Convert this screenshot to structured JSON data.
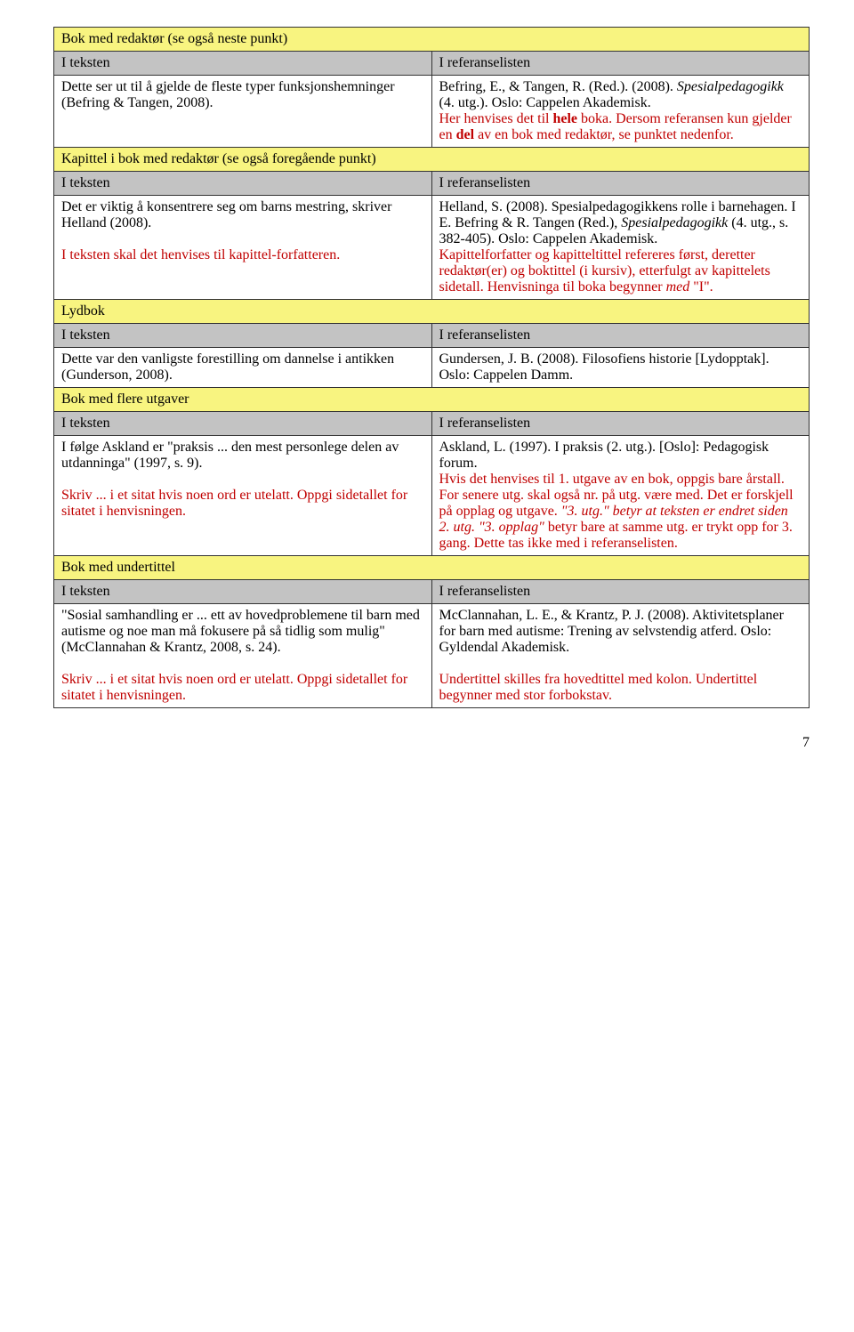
{
  "colors": {
    "yellow": "#f8f480",
    "grey": "#c3c3c3",
    "red": "#c00000"
  },
  "labels": {
    "i_teksten": "I teksten",
    "i_ref": "I referanselisten"
  },
  "section1": {
    "title": "Bok med redaktør (se også neste punkt)",
    "left": "Dette ser ut til å gjelde de fleste typer funksjonshemninger (Befring & Tangen, 2008).",
    "right": {
      "line1": "Befring, E., & Tangen, R. (Red.). (2008). ",
      "line1_i": "Spesialpedagogikk",
      "line1_end": " (4. utg.). Oslo: Cappelen Akademisk.",
      "note_a": "Her henvises det til ",
      "note_b": "hele",
      "note_c": " boka. Dersom referansen kun gjelder en ",
      "note_d": "del",
      "note_e": " av en bok med redaktør, se punktet nedenfor."
    }
  },
  "section2": {
    "title": "Kapittel i bok med redaktør (se også foregående punkt)",
    "left_a": "Det er viktig å konsentrere seg om barns mestring, skriver Helland (2008).",
    "left_b": "I teksten skal det henvises til kapittel-forfatteren.",
    "right": {
      "r1": "Helland, S. (2008). Spesialpedagogikkens rolle i barnehagen. I E. Befring & R. Tangen (Red.), ",
      "r1_i": "Spesialpedagogikk",
      "r1_end": " (4. utg., s. 382-405). Oslo: Cappelen Akademisk.",
      "note_a": "Kapittelforfatter og kapitteltittel refereres først, deretter redaktør(er) og boktittel (i kursiv), etterfulgt av kapittelets sidetall. Henvisninga til boka begynner ",
      "note_b": "med",
      "note_c": " \"I\"."
    }
  },
  "section3": {
    "title": "Lydbok",
    "left": "Dette var den vanligste forestilling om dannelse i antikken (Gunderson, 2008).",
    "right": "Gundersen, J. B. (2008). Filosofiens historie [Lydopptak]. Oslo: Cappelen Damm."
  },
  "section4": {
    "title": "Bok med flere utgaver",
    "left_a": "I følge Askland er \"praksis ... den mest personlege delen av utdanninga\" (1997, s. 9).",
    "left_b": "Skriv ... i et sitat hvis noen ord er utelatt. Oppgi sidetallet for sitatet i henvisningen.",
    "right": {
      "r1": "Askland, L. (1997). I praksis (2. utg.). [Oslo]: Pedagogisk forum.",
      "note_a": "Hvis det henvises til 1. utgave av en bok, oppgis bare årstall. For senere utg. skal også nr. på utg. være med. Det er forskjell på opplag og utgave. ",
      "note_b": "\"3. utg.\" betyr at teksten er endret siden 2. utg. \"3. opplag\"",
      "note_c": " betyr bare at samme utg. er trykt opp for 3. gang. Dette tas ikke med i referanselisten."
    }
  },
  "section5": {
    "title": "Bok med undertittel",
    "left_a": "\"Sosial samhandling er ... ett av hovedproblemene til barn med autisme og noe man må fokusere på så tidlig som mulig\" (McClannahan & Krantz, 2008, s. 24).",
    "left_b": "Skriv ... i et sitat hvis noen ord er utelatt. Oppgi sidetallet for sitatet i henvisningen.",
    "right": {
      "r1": "McClannahan, L. E., & Krantz, P. J. (2008). Aktivitetsplaner for barn med autisme: Trening av selvstendig atferd. Oslo: Gyldendal Akademisk.",
      "note": "Undertittel skilles fra hovedtittel med kolon. Undertittel begynner med stor forbokstav."
    }
  },
  "page": "7"
}
